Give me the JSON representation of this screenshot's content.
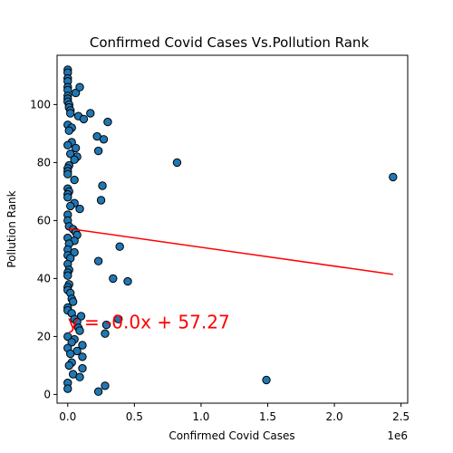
{
  "chart_data": {
    "type": "scatter",
    "title": "Confirmed Covid Cases Vs.Pollution Rank",
    "xlabel": "Confirmed Covid Cases",
    "ylabel": "Pollution Rank",
    "x_offset_label": "1e6",
    "xlim": [
      -0.08,
      2.55
    ],
    "ylim": [
      -3,
      117
    ],
    "x_ticks": [
      0.0,
      0.5,
      1.0,
      1.5,
      2.0,
      2.5
    ],
    "x_tick_labels": [
      "0.0",
      "0.5",
      "1.0",
      "1.5",
      "2.0",
      "2.5"
    ],
    "y_ticks": [
      0,
      20,
      40,
      60,
      80,
      100
    ],
    "y_tick_labels": [
      "0",
      "20",
      "40",
      "60",
      "80",
      "100"
    ],
    "grid": false,
    "legend": "none",
    "point_color": "#1f77b4",
    "point_edge_color": "#000000",
    "regression": {
      "slope": -6.5e-06,
      "intercept": 57.27,
      "x_range": [
        0.0,
        2.44
      ],
      "color": "#ff0000",
      "label": "y = -0.0x + 57.27",
      "label_color": "#ff0000"
    },
    "points": [
      {
        "x": 0.0,
        "y": 112
      },
      {
        "x": 0.0,
        "y": 111
      },
      {
        "x": 0.0,
        "y": 109
      },
      {
        "x": 0.0,
        "y": 108
      },
      {
        "x": 0.0,
        "y": 106
      },
      {
        "x": 0.0,
        "y": 105
      },
      {
        "x": 0.0,
        "y": 103
      },
      {
        "x": 0.0,
        "y": 102
      },
      {
        "x": 0.0,
        "y": 101
      },
      {
        "x": 0.01,
        "y": 100
      },
      {
        "x": 0.01,
        "y": 99
      },
      {
        "x": 0.02,
        "y": 98
      },
      {
        "x": 0.02,
        "y": 97
      },
      {
        "x": 0.06,
        "y": 104
      },
      {
        "x": 0.09,
        "y": 106
      },
      {
        "x": 0.08,
        "y": 96
      },
      {
        "x": 0.12,
        "y": 95
      },
      {
        "x": 0.17,
        "y": 97
      },
      {
        "x": 0.3,
        "y": 94
      },
      {
        "x": 0.0,
        "y": 93
      },
      {
        "x": 0.03,
        "y": 92
      },
      {
        "x": 0.01,
        "y": 91
      },
      {
        "x": 0.22,
        "y": 89
      },
      {
        "x": 0.27,
        "y": 88
      },
      {
        "x": 0.03,
        "y": 87
      },
      {
        "x": 0.0,
        "y": 86
      },
      {
        "x": 0.06,
        "y": 85
      },
      {
        "x": 0.23,
        "y": 84
      },
      {
        "x": 0.02,
        "y": 83
      },
      {
        "x": 0.07,
        "y": 82
      },
      {
        "x": 0.05,
        "y": 81
      },
      {
        "x": 0.01,
        "y": 79
      },
      {
        "x": 0.0,
        "y": 78
      },
      {
        "x": 0.0,
        "y": 77
      },
      {
        "x": 0.0,
        "y": 76
      },
      {
        "x": 0.82,
        "y": 80
      },
      {
        "x": 2.44,
        "y": 75
      },
      {
        "x": 0.05,
        "y": 74
      },
      {
        "x": 0.26,
        "y": 72
      },
      {
        "x": 0.0,
        "y": 71
      },
      {
        "x": 0.01,
        "y": 70
      },
      {
        "x": 0.0,
        "y": 69
      },
      {
        "x": 0.0,
        "y": 68
      },
      {
        "x": 0.25,
        "y": 67
      },
      {
        "x": 0.05,
        "y": 66
      },
      {
        "x": 0.02,
        "y": 65
      },
      {
        "x": 0.09,
        "y": 64
      },
      {
        "x": 0.0,
        "y": 62
      },
      {
        "x": 0.0,
        "y": 60
      },
      {
        "x": 0.01,
        "y": 58
      },
      {
        "x": 0.04,
        "y": 57
      },
      {
        "x": 0.06,
        "y": 56
      },
      {
        "x": 0.07,
        "y": 55
      },
      {
        "x": 0.0,
        "y": 54
      },
      {
        "x": 0.05,
        "y": 53
      },
      {
        "x": 0.01,
        "y": 52
      },
      {
        "x": 0.39,
        "y": 51
      },
      {
        "x": 0.0,
        "y": 50
      },
      {
        "x": 0.05,
        "y": 49
      },
      {
        "x": 0.0,
        "y": 48
      },
      {
        "x": 0.02,
        "y": 47
      },
      {
        "x": 0.23,
        "y": 46
      },
      {
        "x": 0.0,
        "y": 45
      },
      {
        "x": 0.01,
        "y": 43
      },
      {
        "x": 0.0,
        "y": 42
      },
      {
        "x": 0.0,
        "y": 41
      },
      {
        "x": 0.34,
        "y": 40
      },
      {
        "x": 0.45,
        "y": 39
      },
      {
        "x": 0.01,
        "y": 38
      },
      {
        "x": 0.0,
        "y": 37
      },
      {
        "x": 0.0,
        "y": 36
      },
      {
        "x": 0.02,
        "y": 35
      },
      {
        "x": 0.03,
        "y": 33
      },
      {
        "x": 0.04,
        "y": 32
      },
      {
        "x": 0.0,
        "y": 30
      },
      {
        "x": 0.0,
        "y": 29
      },
      {
        "x": 0.03,
        "y": 28
      },
      {
        "x": 0.1,
        "y": 27
      },
      {
        "x": 0.05,
        "y": 26
      },
      {
        "x": 0.38,
        "y": 26
      },
      {
        "x": 0.07,
        "y": 25
      },
      {
        "x": 0.29,
        "y": 24
      },
      {
        "x": 0.08,
        "y": 23
      },
      {
        "x": 0.09,
        "y": 22
      },
      {
        "x": 0.28,
        "y": 21
      },
      {
        "x": 0.0,
        "y": 20
      },
      {
        "x": 0.05,
        "y": 19
      },
      {
        "x": 0.03,
        "y": 18
      },
      {
        "x": 0.11,
        "y": 17
      },
      {
        "x": 0.0,
        "y": 16
      },
      {
        "x": 0.07,
        "y": 15
      },
      {
        "x": 0.02,
        "y": 14
      },
      {
        "x": 0.11,
        "y": 13
      },
      {
        "x": 0.03,
        "y": 11
      },
      {
        "x": 0.01,
        "y": 10
      },
      {
        "x": 0.11,
        "y": 9
      },
      {
        "x": 0.04,
        "y": 7
      },
      {
        "x": 0.09,
        "y": 6
      },
      {
        "x": 1.49,
        "y": 5
      },
      {
        "x": 0.0,
        "y": 4
      },
      {
        "x": 0.28,
        "y": 3
      },
      {
        "x": 0.0,
        "y": 2
      },
      {
        "x": 0.23,
        "y": 1
      }
    ]
  }
}
